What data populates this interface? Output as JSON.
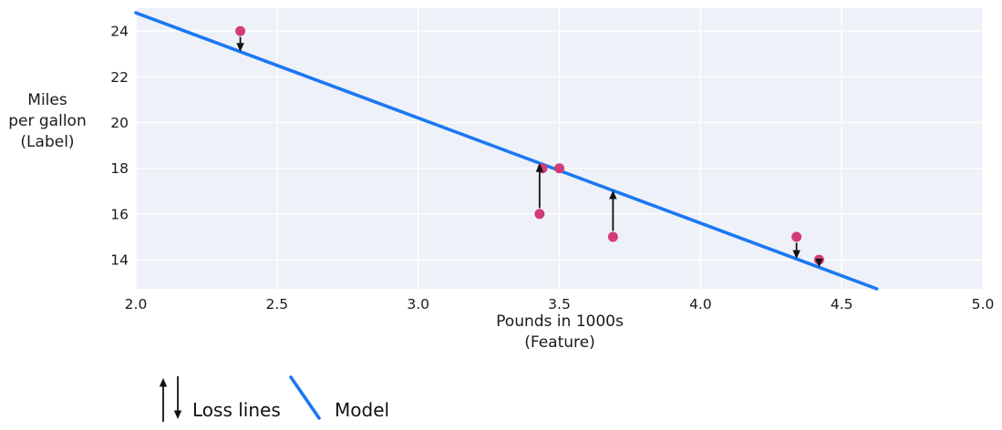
{
  "chart_data": {
    "type": "scatter",
    "title": "",
    "xlabel_lines": [
      "Pounds in 1000s",
      "(Feature)"
    ],
    "ylabel_lines": [
      "Miles",
      "per gallon",
      "(Label)"
    ],
    "x_ticks": [
      "2.0",
      "2.5",
      "3.0",
      "3.5",
      "4.0",
      "4.5",
      "5.0"
    ],
    "y_ticks": [
      "14",
      "16",
      "18",
      "20",
      "22",
      "24"
    ],
    "xlim": [
      2.0,
      5.0
    ],
    "ylim": [
      12.73,
      25.0
    ],
    "grid": true,
    "legend_position": "bottom-left",
    "points": [
      {
        "x": 2.37,
        "y": 24
      },
      {
        "x": 3.44,
        "y": 18
      },
      {
        "x": 3.5,
        "y": 18
      },
      {
        "x": 3.43,
        "y": 16
      },
      {
        "x": 3.69,
        "y": 15
      },
      {
        "x": 4.34,
        "y": 15
      },
      {
        "x": 4.42,
        "y": 14
      }
    ],
    "model": {
      "slope": -4.6,
      "intercept": 34
    },
    "loss_lines": [
      {
        "x": 2.37,
        "from": 24,
        "to": 23.1,
        "direction": "down"
      },
      {
        "x": 3.43,
        "from": 16,
        "to": 18.22,
        "direction": "up"
      },
      {
        "x": 3.69,
        "from": 15,
        "to": 17.03,
        "direction": "up"
      },
      {
        "x": 4.34,
        "from": 15,
        "to": 14.04,
        "direction": "down"
      },
      {
        "x": 4.42,
        "from": 14,
        "to": 13.67,
        "direction": "down"
      }
    ],
    "legend": {
      "loss_label": "Loss lines",
      "model_label": "Model"
    },
    "colors": {
      "point": "#d23c78",
      "model_line": "#1b78f2",
      "plot_bg": "#eef1f7",
      "grid": "#ffffff",
      "arrow": "#111111",
      "text": "#1a1a1a"
    }
  }
}
